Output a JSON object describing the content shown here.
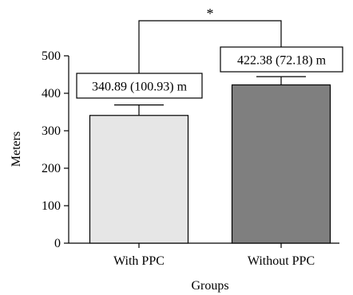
{
  "chart_data": {
    "type": "bar",
    "categories": [
      "With PPC",
      "Without PPC"
    ],
    "values": [
      340.89,
      422.38
    ],
    "errors": [
      28,
      22
    ],
    "value_labels": [
      "340.89 (100.93) m",
      "422.38 (72.18) m"
    ],
    "bar_colors": [
      "#e6e6e6",
      "#7f7f7f"
    ],
    "xlabel": "Groups",
    "ylabel": "Meters",
    "ylim": [
      0,
      500
    ],
    "yticks": [
      0,
      100,
      200,
      300,
      400,
      500
    ],
    "grid": false,
    "significance": "*"
  }
}
